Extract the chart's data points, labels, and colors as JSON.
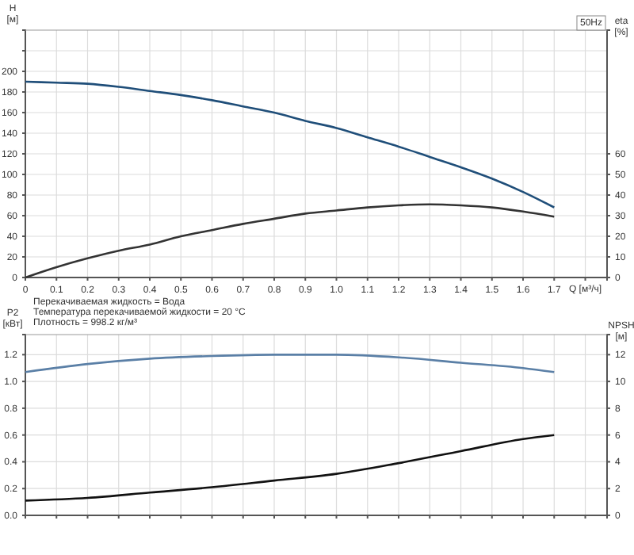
{
  "chart_data": [
    {
      "type": "line",
      "xlabel": "Q [м³/ч]",
      "ylabel": "H [м]",
      "y2label": "eta [%]",
      "annotations": [
        "50Hz",
        "Перекачиваемая жидкость = Вода",
        "Температура перекачиваемой жидкости = 20 °C",
        "Плотность = 998.2 кг/м³"
      ],
      "x": [
        0,
        0.1,
        0.2,
        0.3,
        0.4,
        0.5,
        0.6,
        0.7,
        0.8,
        0.9,
        1.0,
        1.1,
        1.2,
        1.3,
        1.4,
        1.5,
        1.6,
        1.7
      ],
      "series": [
        {
          "color": "#1f4e79",
          "values": [
            190,
            189,
            188,
            185,
            181,
            177,
            172,
            166,
            160,
            152,
            145,
            136,
            127,
            117,
            107,
            96,
            83,
            68
          ]
        },
        {
          "color": "#333333",
          "axis": "y2",
          "values": [
            0,
            5,
            9.3,
            13,
            16,
            20,
            23,
            26,
            28.5,
            31,
            32.5,
            34,
            35,
            35.5,
            35,
            34,
            32,
            29.5
          ]
        }
      ],
      "xlim": [
        0,
        1.87
      ],
      "xticks": [
        0,
        0.1,
        0.2,
        0.3,
        0.4,
        0.5,
        0.6,
        0.7,
        0.8,
        0.9,
        {
          "value": 1,
          "label": "1.0"
        },
        1.1,
        1.2,
        1.3,
        1.4,
        1.5,
        1.6,
        1.7,
        {
          "value": 1.8,
          "label": null
        }
      ],
      "ylim": [
        0,
        240
      ],
      "yticks": [
        0,
        20,
        40,
        60,
        80,
        100,
        120,
        140,
        160,
        180,
        200,
        {
          "value": 220,
          "label": null
        }
      ],
      "y2lim": [
        0,
        120
      ],
      "y2ticks": [
        0,
        10,
        20,
        30,
        40,
        50,
        60
      ],
      "grid": true,
      "line_style": "solid",
      "marker": "none"
    },
    {
      "type": "line",
      "ylabel": "P2 [кВт]",
      "y2label": "NPSH [м]",
      "x": [
        0,
        0.2,
        0.4,
        0.6,
        0.8,
        1.0,
        1.2,
        1.4,
        1.6,
        1.7
      ],
      "series": [
        {
          "color": "#5a7fa6",
          "values": [
            1.07,
            1.13,
            1.17,
            1.19,
            1.2,
            1.2,
            1.18,
            1.14,
            1.1,
            1.07
          ]
        },
        {
          "color": "#111111",
          "axis": "y2",
          "values": [
            1.1,
            1.3,
            1.7,
            2.1,
            2.6,
            3.1,
            3.9,
            4.8,
            5.7,
            6.0
          ]
        }
      ],
      "xlim": [
        0,
        1.87
      ],
      "xticks": [
        0,
        0.1,
        0.2,
        0.3,
        0.4,
        0.5,
        0.6,
        0.7,
        0.8,
        0.9,
        1.0,
        1.1,
        1.2,
        1.3,
        1.4,
        1.5,
        1.6,
        1.7,
        1.8
      ],
      "ylim": [
        0,
        1.35
      ],
      "yticks": [
        {
          "value": 0,
          "label": "0.0"
        },
        0.2,
        0.4,
        0.6,
        0.8,
        {
          "value": 1,
          "label": "1.0"
        },
        1.2
      ],
      "y2lim": [
        0,
        13.5
      ],
      "y2ticks": [
        0,
        2,
        4,
        6,
        8,
        10,
        12
      ],
      "tick_labels": "y",
      "grid": true,
      "line_style": "solid",
      "marker": "none"
    }
  ]
}
